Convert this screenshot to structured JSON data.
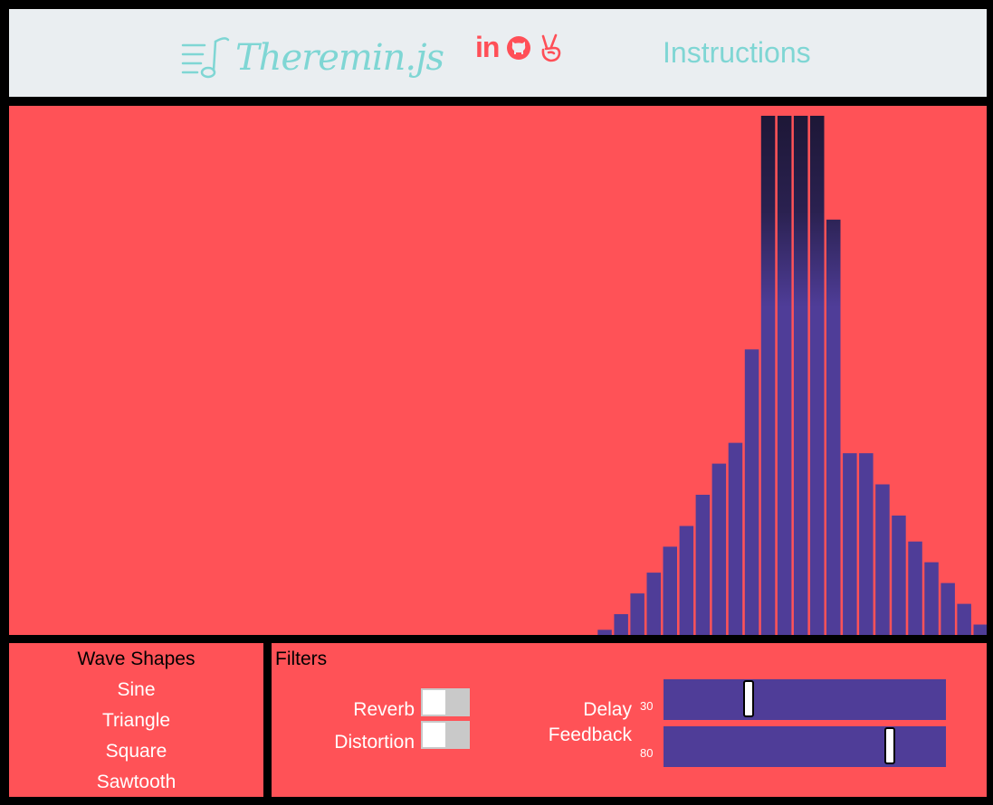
{
  "header": {
    "logo_text": "Theremin.js",
    "social": [
      "linkedin-icon",
      "github-icon",
      "peace-icon"
    ],
    "linkedin_text": "in",
    "instructions_label": "Instructions"
  },
  "colors": {
    "header_bg": "#eaeef1",
    "panel_bg": "#ff5257",
    "accent_teal": "#7fd6d4",
    "accent_red": "#ff4f57",
    "bar_color": "#4f3d98",
    "bar_peak": "#1e1838"
  },
  "visualizer": {
    "bar_levels": [
      0,
      0,
      0,
      0,
      0,
      0,
      0,
      0,
      0,
      0,
      0,
      0,
      0,
      0,
      0,
      0,
      0,
      0,
      0,
      0,
      0,
      0,
      0,
      0,
      0,
      0,
      0,
      0,
      0,
      0,
      0,
      0,
      0,
      0,
      0,
      0,
      0.01,
      0.04,
      0.08,
      0.12,
      0.17,
      0.21,
      0.27,
      0.33,
      0.37,
      0.55,
      1.0,
      1.0,
      1.0,
      1.0,
      0.8,
      0.35,
      0.35,
      0.29,
      0.23,
      0.18,
      0.14,
      0.1,
      0.06,
      0.02
    ]
  },
  "wave_shapes": {
    "title": "Wave Shapes",
    "items": [
      "Sine",
      "Triangle",
      "Square",
      "Sawtooth"
    ]
  },
  "filters": {
    "title": "Filters",
    "reverb_label": "Reverb",
    "distortion_label": "Distortion",
    "reverb_on": false,
    "distortion_on": false,
    "delay_label": "Delay",
    "feedback_label": "Feedback",
    "delay_value": "30",
    "feedback_value": "80",
    "delay_level": 0.3,
    "feedback_level": 0.8
  }
}
